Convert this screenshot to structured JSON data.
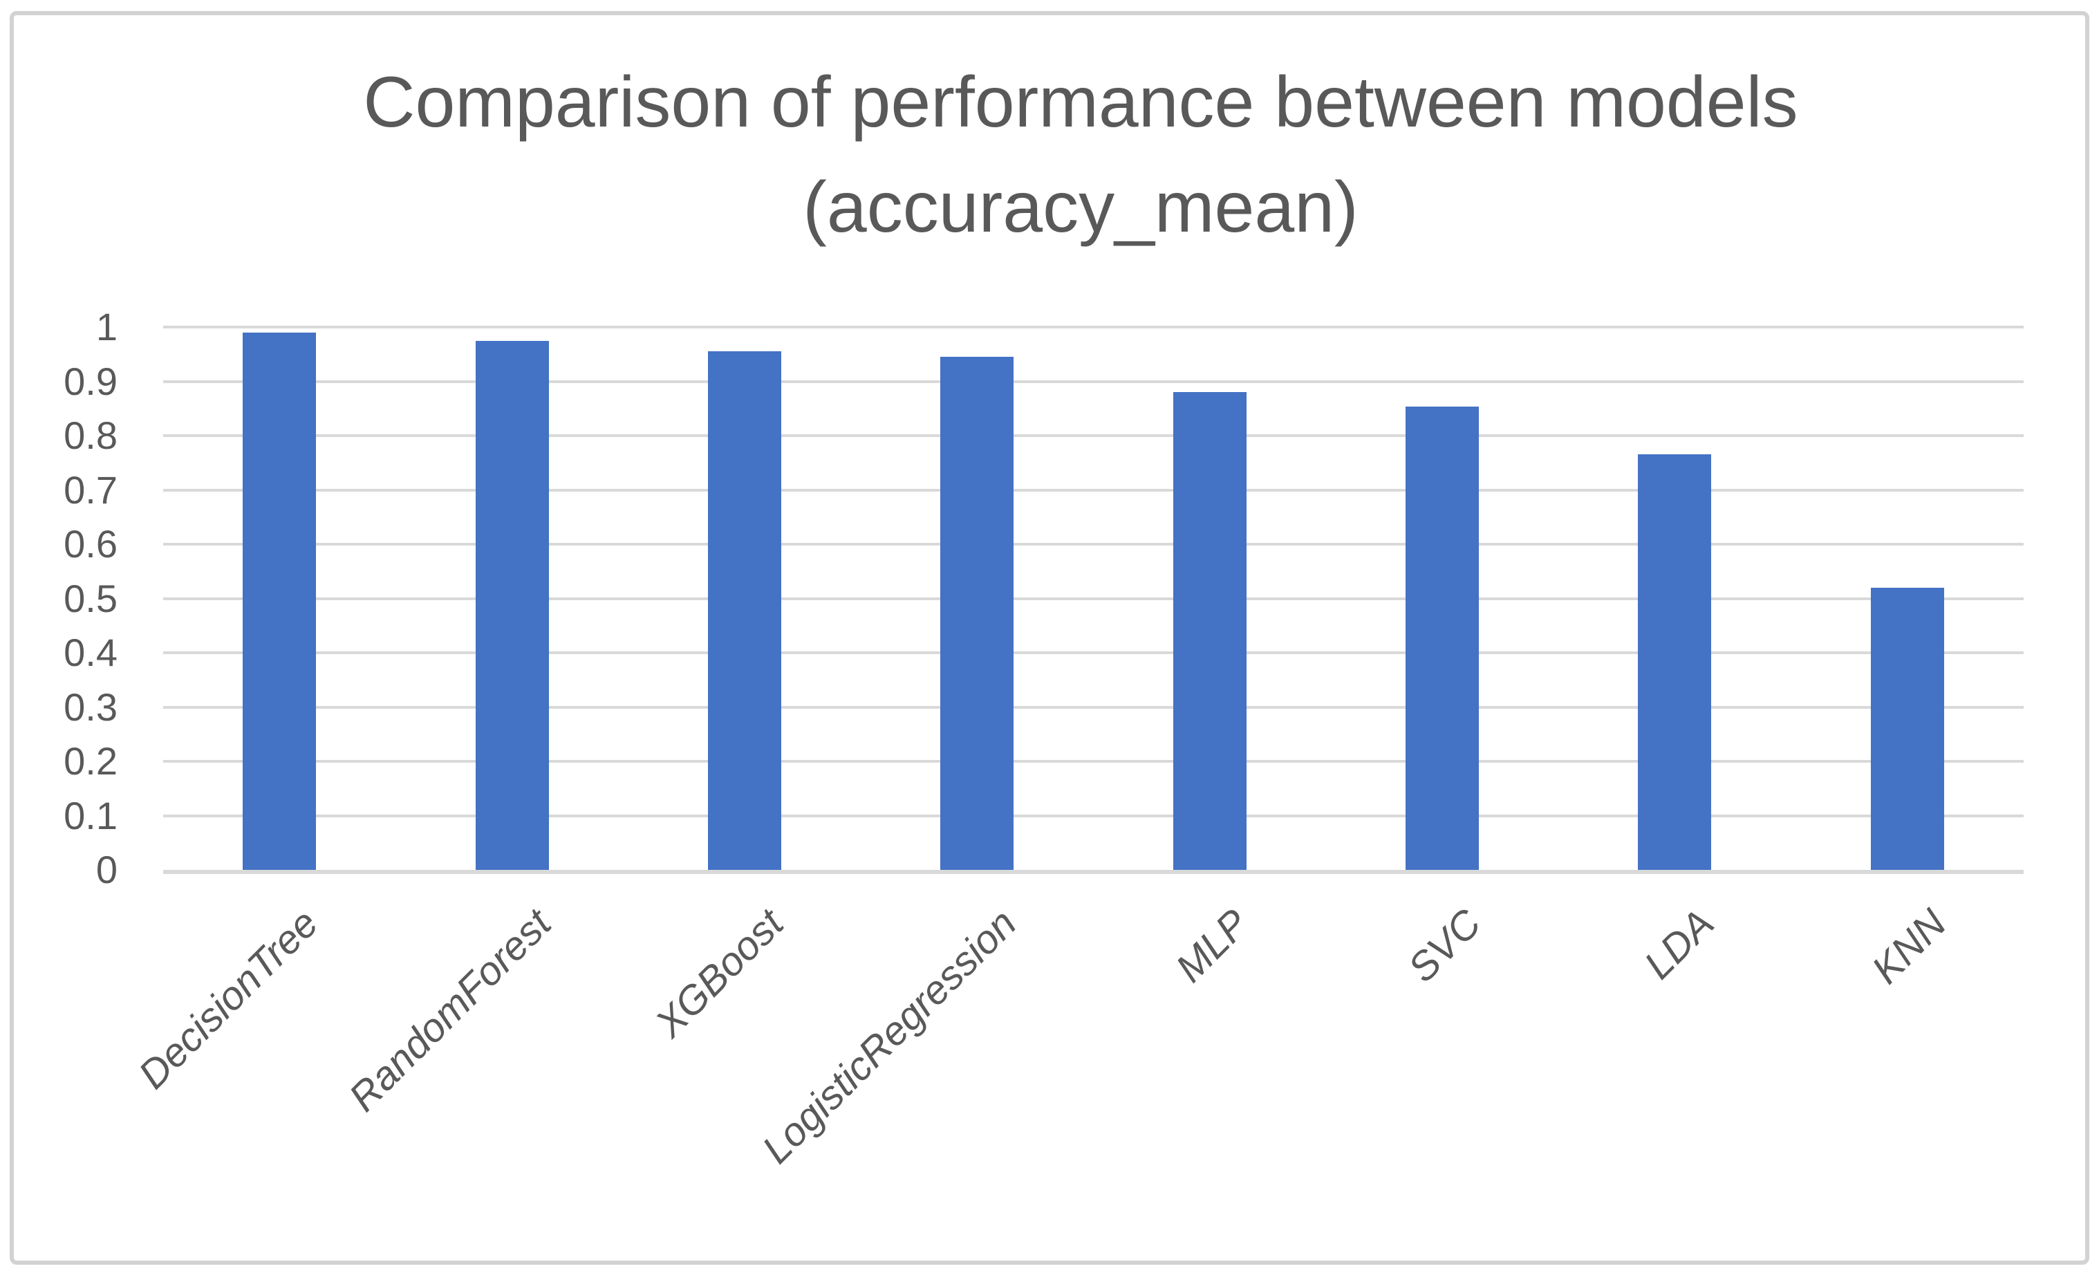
{
  "chart": {
    "title_line1": "Comparison of performance between models",
    "title_line2": "(accuracy_mean)",
    "colors": {
      "bar": "#4472C4",
      "grid": "#D9D9D9",
      "text": "#595959",
      "border": "#D2D2D2",
      "background": "#FFFFFF"
    }
  },
  "chart_data": {
    "type": "bar",
    "title": "Comparison of performance between models (accuracy_mean)",
    "xlabel": "",
    "ylabel": "",
    "categories": [
      "DecisionTree",
      "RandomForest",
      "XGBoost",
      "LogisticRegression",
      "MLP",
      "SVC",
      "LDA",
      "KNN"
    ],
    "values": [
      0.99,
      0.975,
      0.955,
      0.945,
      0.88,
      0.853,
      0.765,
      0.52
    ],
    "series": [
      {
        "name": "accuracy_mean",
        "values": [
          0.99,
          0.975,
          0.955,
          0.945,
          0.88,
          0.853,
          0.765,
          0.52
        ]
      }
    ],
    "ylim": [
      0,
      1
    ],
    "yticks": [
      {
        "v": 0.0,
        "label": "0"
      },
      {
        "v": 0.1,
        "label": "0.1"
      },
      {
        "v": 0.2,
        "label": "0.2"
      },
      {
        "v": 0.3,
        "label": "0.3"
      },
      {
        "v": 0.4,
        "label": "0.4"
      },
      {
        "v": 0.5,
        "label": "0.5"
      },
      {
        "v": 0.6,
        "label": "0.6"
      },
      {
        "v": 0.7,
        "label": "0.7"
      },
      {
        "v": 0.8,
        "label": "0.8"
      },
      {
        "v": 0.9,
        "label": "0.9"
      },
      {
        "v": 1.0,
        "label": "1"
      }
    ],
    "grid": true,
    "legend_position": "none",
    "xtick_rotation_deg": 45
  }
}
